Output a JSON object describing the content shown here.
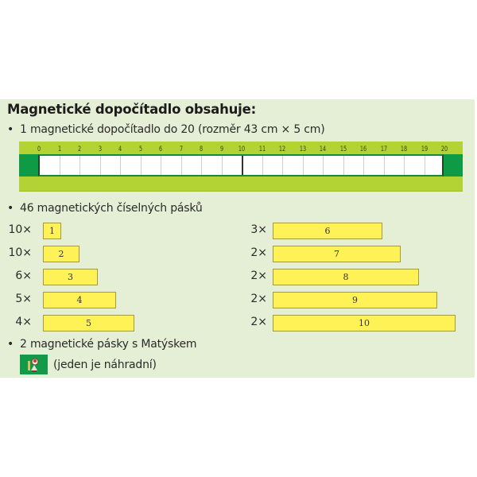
{
  "title": "Magnetické dopočítadlo obsahuje:",
  "bullets": {
    "b1": "1 magnetické dopočítadlo do 20 (rozměr 43 cm × 5 cm)",
    "b2": "46 magnetických číselných pásků",
    "b3": "2 magnetické pásky s Matýskem",
    "b3_note": "(jeden je náhradní)",
    "bullet_char": "•"
  },
  "ruler": {
    "numbers": [
      "0",
      "1",
      "2",
      "3",
      "4",
      "5",
      "6",
      "7",
      "8",
      "9",
      "10",
      "11",
      "12",
      "13",
      "14",
      "15",
      "16",
      "17",
      "18",
      "19",
      "20"
    ],
    "colors": {
      "band": "#b3d335",
      "ends": "#0f9a45",
      "track": "#ffffff"
    }
  },
  "strips": {
    "left": [
      {
        "count": "10×",
        "value": "1"
      },
      {
        "count": "10×",
        "value": "2"
      },
      {
        "count": "6×",
        "value": "3"
      },
      {
        "count": "5×",
        "value": "4"
      },
      {
        "count": "4×",
        "value": "5"
      }
    ],
    "right": [
      {
        "count": "3×",
        "value": "6"
      },
      {
        "count": "2×",
        "value": "7"
      },
      {
        "count": "2×",
        "value": "8"
      },
      {
        "count": "2×",
        "value": "9"
      },
      {
        "count": "2×",
        "value": "10"
      }
    ],
    "color": "#fff257"
  },
  "icons": {
    "matysek": "matysek-character-icon"
  }
}
